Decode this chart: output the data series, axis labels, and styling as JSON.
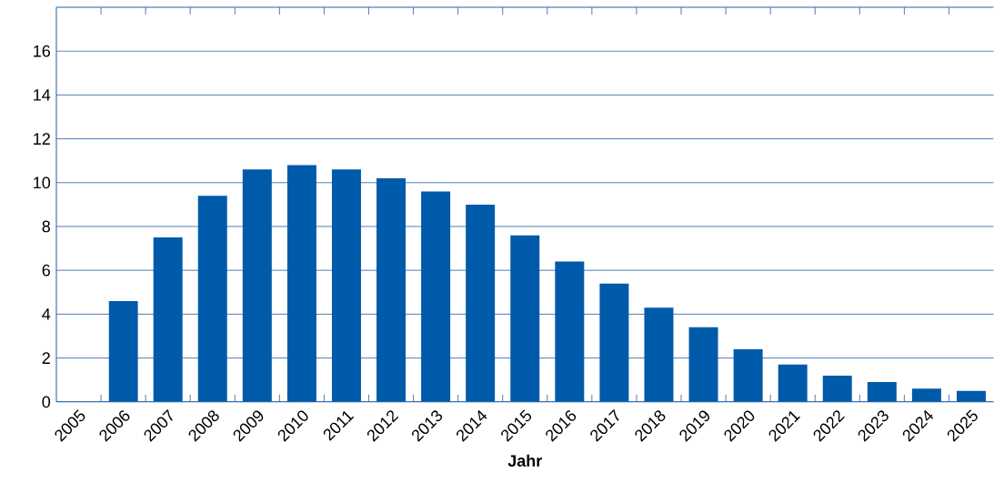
{
  "chart_data": {
    "type": "bar",
    "xlabel": "Jahr",
    "categories": [
      "2005",
      "2006",
      "2007",
      "2008",
      "2009",
      "2010",
      "2011",
      "2012",
      "2013",
      "2014",
      "2015",
      "2016",
      "2017",
      "2018",
      "2019",
      "2020",
      "2021",
      "2022",
      "2023",
      "2024",
      "2025"
    ],
    "values": [
      null,
      4.6,
      7.5,
      9.4,
      10.6,
      10.8,
      10.6,
      10.2,
      9.6,
      9.0,
      7.6,
      6.4,
      5.4,
      4.3,
      3.4,
      2.4,
      1.7,
      1.2,
      0.9,
      0.6,
      0.5
    ],
    "color": "#005aaa",
    "ylim": [
      0,
      18
    ],
    "yticks": [
      0,
      2,
      4,
      6,
      8,
      10,
      12,
      14,
      16
    ],
    "grid": "y"
  }
}
